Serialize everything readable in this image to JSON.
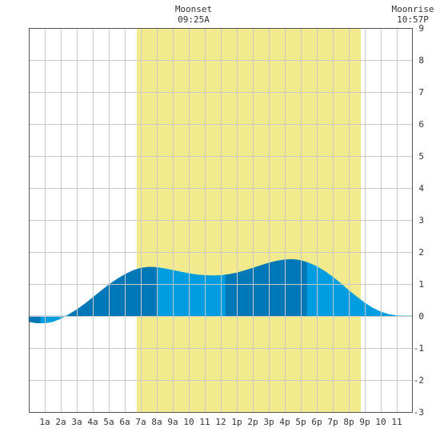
{
  "annotations": {
    "moonset": {
      "label": "Moonset",
      "time": "09:25A"
    },
    "moonrise": {
      "label": "Moonrise",
      "time": "10:57P"
    }
  },
  "chart_data": {
    "type": "area",
    "title": "",
    "xlabel": "",
    "ylabel": "",
    "x_unit": "hour of day",
    "xlim": [
      0,
      24
    ],
    "ylim": [
      -3,
      9
    ],
    "grid": true,
    "x_tick_labels": [
      "1a",
      "2a",
      "3a",
      "4a",
      "5a",
      "6a",
      "7a",
      "8a",
      "9a",
      "10",
      "11",
      "12",
      "1p",
      "2p",
      "3p",
      "4p",
      "5p",
      "6p",
      "7p",
      "8p",
      "9p",
      "10",
      "11"
    ],
    "y_ticks": [
      -3,
      -2,
      -1,
      0,
      1,
      2,
      3,
      4,
      5,
      6,
      7,
      8,
      9
    ],
    "daylight": {
      "start": 6.75,
      "end": 20.75,
      "color": "#f2ea8c"
    },
    "series": [
      {
        "x": [
          0,
          0.5,
          1,
          1.5,
          2,
          2.5,
          3,
          3.5,
          4,
          4.5,
          5,
          5.5,
          6,
          6.5,
          7,
          7.5,
          8,
          8.5,
          9,
          9.5,
          10,
          10.5,
          11,
          11.5,
          12,
          12.5,
          13,
          13.5,
          14,
          14.5,
          15,
          15.5,
          16,
          16.5,
          17,
          17.5,
          18,
          18.5,
          19,
          19.5,
          20,
          20.5,
          21,
          21.5,
          22,
          22.5,
          23,
          23.5,
          24
        ],
        "values": [
          -0.18,
          -0.22,
          -0.22,
          -0.18,
          -0.08,
          0.05,
          0.2,
          0.38,
          0.58,
          0.78,
          0.98,
          1.15,
          1.3,
          1.42,
          1.5,
          1.53,
          1.52,
          1.48,
          1.43,
          1.38,
          1.33,
          1.29,
          1.27,
          1.26,
          1.27,
          1.3,
          1.35,
          1.42,
          1.5,
          1.58,
          1.66,
          1.72,
          1.76,
          1.77,
          1.74,
          1.66,
          1.55,
          1.4,
          1.22,
          1.02,
          0.8,
          0.6,
          0.41,
          0.25,
          0.13,
          0.05,
          0.01,
          0.0,
          0.0
        ]
      }
    ],
    "tide_segments": [
      {
        "start": 0,
        "end": 0.75,
        "color": "#0078b8"
      },
      {
        "start": 0.75,
        "end": 2.5,
        "color": "#009ee0"
      },
      {
        "start": 2.5,
        "end": 8.05,
        "color": "#0078b8"
      },
      {
        "start": 8.05,
        "end": 12.3,
        "color": "#009ee0"
      },
      {
        "start": 12.3,
        "end": 17.4,
        "color": "#0078b8"
      },
      {
        "start": 17.4,
        "end": 24,
        "color": "#009ee0"
      }
    ]
  }
}
